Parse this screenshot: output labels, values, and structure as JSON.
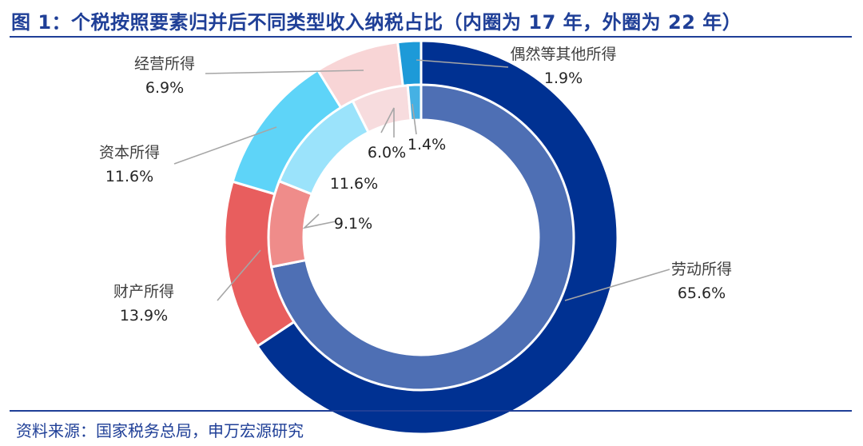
{
  "header": {
    "title": "图 1：个税按照要素归并后不同类型收入纳税占比（内圈为 17 年，外圈为 22 年）"
  },
  "footer": {
    "source": "资料来源：国家税务总局，申万宏源研究"
  },
  "chart_data": {
    "type": "donut",
    "title": "个税按照要素归并后不同类型收入纳税占比（内圈为 17 年，外圈为 22 年）",
    "categories": [
      "劳动所得",
      "财产所得",
      "资本所得",
      "经营所得",
      "偶然等其他所得"
    ],
    "series": [
      {
        "name": "17 年",
        "ring": "inner",
        "values": [
          71.9,
          9.1,
          11.6,
          6.0,
          1.4
        ],
        "labels": [
          "71.9%",
          "9.1%",
          "11.6%",
          "6.0%",
          "1.4%"
        ]
      },
      {
        "name": "22 年",
        "ring": "outer",
        "values": [
          65.6,
          13.9,
          11.6,
          6.9,
          1.9
        ],
        "labels": [
          "65.6%",
          "13.9%",
          "11.6%",
          "6.9%",
          "1.9%"
        ]
      }
    ],
    "colors": {
      "inner": [
        "#4e6fb4",
        "#ef8c8a",
        "#9be3fb",
        "#f7dcde",
        "#45b1e4"
      ],
      "outer": [
        "#003192",
        "#e85e5e",
        "#5ed4f8",
        "#f8d5d6",
        "#1d9ad8"
      ]
    }
  }
}
